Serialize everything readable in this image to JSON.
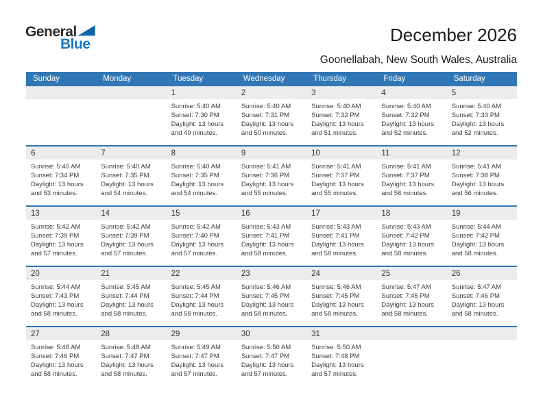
{
  "logo": {
    "general": "General",
    "blue": "Blue"
  },
  "header": {
    "title": "December 2026",
    "subtitle": "Goonellabah, New South Wales, Australia"
  },
  "weekday_headers": [
    "Sunday",
    "Monday",
    "Tuesday",
    "Wednesday",
    "Thursday",
    "Friday",
    "Saturday"
  ],
  "labels": {
    "sunrise": "Sunrise:",
    "sunset": "Sunset:",
    "daylight": "Daylight:"
  },
  "colors": {
    "header_blue": "#3277B5",
    "separator_blue": "#2E74B5",
    "number_strip_gray": "#ECECEC",
    "logo_blue": "#1779C4",
    "logo_triangle": "#0E68A8",
    "text": "#3B3B3B"
  },
  "calendar": {
    "weeks": [
      {
        "days": [
          null,
          null,
          {
            "date": "1",
            "sunrise": "5:40 AM",
            "sunset": "7:30 PM",
            "daylight_hours": "13 hours",
            "daylight_minutes": "and 49 minutes."
          },
          {
            "date": "2",
            "sunrise": "5:40 AM",
            "sunset": "7:31 PM",
            "daylight_hours": "13 hours",
            "daylight_minutes": "and 50 minutes."
          },
          {
            "date": "3",
            "sunrise": "5:40 AM",
            "sunset": "7:32 PM",
            "daylight_hours": "13 hours",
            "daylight_minutes": "and 51 minutes."
          },
          {
            "date": "4",
            "sunrise": "5:40 AM",
            "sunset": "7:32 PM",
            "daylight_hours": "13 hours",
            "daylight_minutes": "and 52 minutes."
          },
          {
            "date": "5",
            "sunrise": "5:40 AM",
            "sunset": "7:33 PM",
            "daylight_hours": "13 hours",
            "daylight_minutes": "and 52 minutes."
          }
        ]
      },
      {
        "days": [
          {
            "date": "6",
            "sunrise": "5:40 AM",
            "sunset": "7:34 PM",
            "daylight_hours": "13 hours",
            "daylight_minutes": "and 53 minutes."
          },
          {
            "date": "7",
            "sunrise": "5:40 AM",
            "sunset": "7:35 PM",
            "daylight_hours": "13 hours",
            "daylight_minutes": "and 54 minutes."
          },
          {
            "date": "8",
            "sunrise": "5:40 AM",
            "sunset": "7:35 PM",
            "daylight_hours": "13 hours",
            "daylight_minutes": "and 54 minutes."
          },
          {
            "date": "9",
            "sunrise": "5:41 AM",
            "sunset": "7:36 PM",
            "daylight_hours": "13 hours",
            "daylight_minutes": "and 55 minutes."
          },
          {
            "date": "10",
            "sunrise": "5:41 AM",
            "sunset": "7:37 PM",
            "daylight_hours": "13 hours",
            "daylight_minutes": "and 55 minutes."
          },
          {
            "date": "11",
            "sunrise": "5:41 AM",
            "sunset": "7:37 PM",
            "daylight_hours": "13 hours",
            "daylight_minutes": "and 56 minutes."
          },
          {
            "date": "12",
            "sunrise": "5:41 AM",
            "sunset": "7:38 PM",
            "daylight_hours": "13 hours",
            "daylight_minutes": "and 56 minutes."
          }
        ]
      },
      {
        "days": [
          {
            "date": "13",
            "sunrise": "5:42 AM",
            "sunset": "7:39 PM",
            "daylight_hours": "13 hours",
            "daylight_minutes": "and 57 minutes."
          },
          {
            "date": "14",
            "sunrise": "5:42 AM",
            "sunset": "7:39 PM",
            "daylight_hours": "13 hours",
            "daylight_minutes": "and 57 minutes."
          },
          {
            "date": "15",
            "sunrise": "5:42 AM",
            "sunset": "7:40 PM",
            "daylight_hours": "13 hours",
            "daylight_minutes": "and 57 minutes."
          },
          {
            "date": "16",
            "sunrise": "5:43 AM",
            "sunset": "7:41 PM",
            "daylight_hours": "13 hours",
            "daylight_minutes": "and 58 minutes."
          },
          {
            "date": "17",
            "sunrise": "5:43 AM",
            "sunset": "7:41 PM",
            "daylight_hours": "13 hours",
            "daylight_minutes": "and 58 minutes."
          },
          {
            "date": "18",
            "sunrise": "5:43 AM",
            "sunset": "7:42 PM",
            "daylight_hours": "13 hours",
            "daylight_minutes": "and 58 minutes."
          },
          {
            "date": "19",
            "sunrise": "5:44 AM",
            "sunset": "7:42 PM",
            "daylight_hours": "13 hours",
            "daylight_minutes": "and 58 minutes."
          }
        ]
      },
      {
        "days": [
          {
            "date": "20",
            "sunrise": "5:44 AM",
            "sunset": "7:43 PM",
            "daylight_hours": "13 hours",
            "daylight_minutes": "and 58 minutes."
          },
          {
            "date": "21",
            "sunrise": "5:45 AM",
            "sunset": "7:44 PM",
            "daylight_hours": "13 hours",
            "daylight_minutes": "and 58 minutes."
          },
          {
            "date": "22",
            "sunrise": "5:45 AM",
            "sunset": "7:44 PM",
            "daylight_hours": "13 hours",
            "daylight_minutes": "and 58 minutes."
          },
          {
            "date": "23",
            "sunrise": "5:46 AM",
            "sunset": "7:45 PM",
            "daylight_hours": "13 hours",
            "daylight_minutes": "and 58 minutes."
          },
          {
            "date": "24",
            "sunrise": "5:46 AM",
            "sunset": "7:45 PM",
            "daylight_hours": "13 hours",
            "daylight_minutes": "and 58 minutes."
          },
          {
            "date": "25",
            "sunrise": "5:47 AM",
            "sunset": "7:45 PM",
            "daylight_hours": "13 hours",
            "daylight_minutes": "and 58 minutes."
          },
          {
            "date": "26",
            "sunrise": "5:47 AM",
            "sunset": "7:46 PM",
            "daylight_hours": "13 hours",
            "daylight_minutes": "and 58 minutes."
          }
        ]
      },
      {
        "days": [
          {
            "date": "27",
            "sunrise": "5:48 AM",
            "sunset": "7:46 PM",
            "daylight_hours": "13 hours",
            "daylight_minutes": "and 58 minutes."
          },
          {
            "date": "28",
            "sunrise": "5:48 AM",
            "sunset": "7:47 PM",
            "daylight_hours": "13 hours",
            "daylight_minutes": "and 58 minutes."
          },
          {
            "date": "29",
            "sunrise": "5:49 AM",
            "sunset": "7:47 PM",
            "daylight_hours": "13 hours",
            "daylight_minutes": "and 57 minutes."
          },
          {
            "date": "30",
            "sunrise": "5:50 AM",
            "sunset": "7:47 PM",
            "daylight_hours": "13 hours",
            "daylight_minutes": "and 57 minutes."
          },
          {
            "date": "31",
            "sunrise": "5:50 AM",
            "sunset": "7:48 PM",
            "daylight_hours": "13 hours",
            "daylight_minutes": "and 57 minutes."
          },
          null,
          null
        ]
      }
    ]
  }
}
